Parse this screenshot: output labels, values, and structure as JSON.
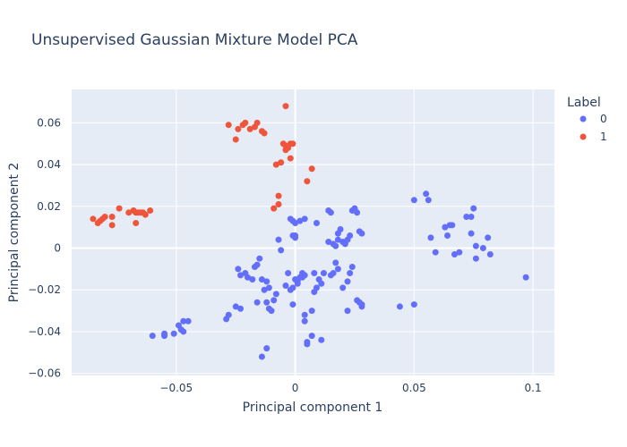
{
  "chart_data": {
    "type": "scatter",
    "title": "Unsupervised Gaussian Mixture Model PCA",
    "xlabel": "Principal component 1",
    "ylabel": "Principal component 2",
    "xlim": [
      -0.094,
      0.109
    ],
    "ylim": [
      -0.061,
      0.076
    ],
    "x_ticks": [
      {
        "value": -0.05,
        "label": "−0.05"
      },
      {
        "value": 0,
        "label": "0"
      },
      {
        "value": 0.05,
        "label": "0.05"
      },
      {
        "value": 0.1,
        "label": "0.1"
      }
    ],
    "y_ticks": [
      {
        "value": -0.06,
        "label": "−0.06"
      },
      {
        "value": -0.04,
        "label": "−0.04"
      },
      {
        "value": -0.02,
        "label": "−0.02"
      },
      {
        "value": 0,
        "label": "0"
      },
      {
        "value": 0.02,
        "label": "0.02"
      },
      {
        "value": 0.04,
        "label": "0.04"
      },
      {
        "value": 0.06,
        "label": "0.06"
      }
    ],
    "grid": true,
    "legend": {
      "title": "Label",
      "position": "right"
    },
    "series": [
      {
        "name": "0",
        "color": "#636efa",
        "points": [
          [
            -0.06,
            -0.042
          ],
          [
            -0.055,
            -0.042
          ],
          [
            -0.055,
            -0.041
          ],
          [
            -0.051,
            -0.041
          ],
          [
            -0.049,
            -0.037
          ],
          [
            -0.048,
            -0.039
          ],
          [
            -0.047,
            -0.04
          ],
          [
            -0.045,
            -0.035
          ],
          [
            -0.047,
            -0.035
          ],
          [
            -0.029,
            -0.034
          ],
          [
            -0.028,
            -0.032
          ],
          [
            -0.025,
            -0.028
          ],
          [
            -0.023,
            -0.029
          ],
          [
            -0.014,
            -0.052
          ],
          [
            -0.012,
            -0.048
          ],
          [
            -0.024,
            -0.01
          ],
          [
            -0.023,
            -0.013
          ],
          [
            -0.021,
            -0.012
          ],
          [
            -0.02,
            -0.014
          ],
          [
            -0.018,
            -0.015
          ],
          [
            -0.017,
            -0.009
          ],
          [
            -0.016,
            -0.008
          ],
          [
            -0.015,
            -0.005
          ],
          [
            -0.014,
            -0.015
          ],
          [
            -0.013,
            -0.02
          ],
          [
            -0.012,
            -0.016
          ],
          [
            -0.011,
            -0.019
          ],
          [
            -0.016,
            -0.026
          ],
          [
            -0.012,
            -0.026
          ],
          [
            -0.011,
            -0.029
          ],
          [
            -0.01,
            -0.03
          ],
          [
            -0.009,
            -0.025
          ],
          [
            -0.008,
            -0.022
          ],
          [
            -0.006,
            -0.001
          ],
          [
            -0.007,
            0.004
          ],
          [
            -0.004,
            -0.018
          ],
          [
            -0.003,
            -0.012
          ],
          [
            -0.002,
            -0.02
          ],
          [
            -0.001,
            -0.027
          ],
          [
            -0.001,
            -0.019
          ],
          [
            0.0,
            -0.015
          ],
          [
            0.001,
            -0.017
          ],
          [
            0.001,
            -0.016
          ],
          [
            0.002,
            -0.014
          ],
          [
            0.003,
            -0.014
          ],
          [
            0.003,
            -0.012
          ],
          [
            0.004,
            -0.013
          ],
          [
            0.004,
            -0.032
          ],
          [
            0.004,
            -0.035
          ],
          [
            0.005,
            -0.045
          ],
          [
            0.005,
            -0.046
          ],
          [
            0.007,
            -0.042
          ],
          [
            0.008,
            -0.021
          ],
          [
            0.008,
            -0.012
          ],
          [
            0.007,
            -0.03
          ],
          [
            0.011,
            -0.044
          ],
          [
            -0.002,
            0.014
          ],
          [
            -0.001,
            0.013
          ],
          [
            0.0,
            0.012
          ],
          [
            0.002,
            0.013
          ],
          [
            0.004,
            0.014
          ],
          [
            0.009,
            0.012
          ],
          [
            0.0,
            0.006
          ],
          [
            -0.001,
            0.006
          ],
          [
            0.0,
            0.005
          ],
          [
            0.014,
            0.018
          ],
          [
            0.015,
            0.017
          ],
          [
            0.014,
            0.003
          ],
          [
            0.016,
            0.002
          ],
          [
            0.017,
            0.001
          ],
          [
            0.018,
            0.004
          ],
          [
            0.018,
            0.007
          ],
          [
            0.019,
            0.009
          ],
          [
            0.02,
            0.003
          ],
          [
            0.021,
            0.002
          ],
          [
            0.022,
            0.004
          ],
          [
            0.023,
            0.006
          ],
          [
            0.024,
            0.018
          ],
          [
            0.025,
            0.019
          ],
          [
            0.026,
            0.017
          ],
          [
            0.027,
            0.008
          ],
          [
            0.028,
            0.007
          ],
          [
            0.024,
            -0.009
          ],
          [
            0.023,
            -0.012
          ],
          [
            0.022,
            -0.016
          ],
          [
            0.02,
            -0.019
          ],
          [
            0.018,
            -0.01
          ],
          [
            0.017,
            -0.007
          ],
          [
            0.016,
            -0.012
          ],
          [
            0.015,
            -0.013
          ],
          [
            0.012,
            -0.012
          ],
          [
            0.01,
            -0.015
          ],
          [
            0.011,
            -0.017
          ],
          [
            0.009,
            -0.019
          ],
          [
            0.026,
            -0.025
          ],
          [
            0.027,
            -0.026
          ],
          [
            0.028,
            -0.028
          ],
          [
            0.028,
            -0.027
          ],
          [
            0.022,
            -0.03
          ],
          [
            0.044,
            -0.028
          ],
          [
            0.05,
            -0.027
          ],
          [
            0.05,
            0.023
          ],
          [
            0.055,
            0.026
          ],
          [
            0.056,
            0.023
          ],
          [
            0.057,
            0.005
          ],
          [
            0.059,
            -0.002
          ],
          [
            0.063,
            0.01
          ],
          [
            0.064,
            0.006
          ],
          [
            0.065,
            0.011
          ],
          [
            0.066,
            0.011
          ],
          [
            0.067,
            -0.003
          ],
          [
            0.069,
            -0.002
          ],
          [
            0.072,
            0.015
          ],
          [
            0.074,
            0.015
          ],
          [
            0.075,
            0.019
          ],
          [
            0.074,
            0.007
          ],
          [
            0.076,
            -0.005
          ],
          [
            0.076,
            0.001
          ],
          [
            0.079,
            0.0
          ],
          [
            0.081,
            0.005
          ],
          [
            0.082,
            -0.003
          ],
          [
            0.097,
            -0.014
          ]
        ]
      },
      {
        "name": "1",
        "color": "#ef553b",
        "points": [
          [
            -0.085,
            0.014
          ],
          [
            -0.083,
            0.012
          ],
          [
            -0.082,
            0.013
          ],
          [
            -0.081,
            0.014
          ],
          [
            -0.08,
            0.015
          ],
          [
            -0.077,
            0.015
          ],
          [
            -0.077,
            0.011
          ],
          [
            -0.074,
            0.019
          ],
          [
            -0.07,
            0.017
          ],
          [
            -0.068,
            0.018
          ],
          [
            -0.067,
            0.017
          ],
          [
            -0.066,
            0.017
          ],
          [
            -0.065,
            0.017
          ],
          [
            -0.064,
            0.017
          ],
          [
            -0.063,
            0.016
          ],
          [
            -0.061,
            0.018
          ],
          [
            -0.067,
            0.012
          ],
          [
            -0.028,
            0.059
          ],
          [
            -0.024,
            0.057
          ],
          [
            -0.022,
            0.059
          ],
          [
            -0.021,
            0.06
          ],
          [
            -0.019,
            0.057
          ],
          [
            -0.017,
            0.058
          ],
          [
            -0.016,
            0.06
          ],
          [
            -0.014,
            0.056
          ],
          [
            -0.013,
            0.055
          ],
          [
            -0.025,
            0.052
          ],
          [
            -0.004,
            0.068
          ],
          [
            -0.005,
            0.05
          ],
          [
            -0.004,
            0.049
          ],
          [
            -0.003,
            0.048
          ],
          [
            -0.002,
            0.05
          ],
          [
            -0.001,
            0.05
          ],
          [
            -0.004,
            0.047
          ],
          [
            -0.008,
            0.04
          ],
          [
            -0.006,
            0.041
          ],
          [
            -0.002,
            0.043
          ],
          [
            0.007,
            0.038
          ],
          [
            0.005,
            0.032
          ],
          [
            -0.007,
            0.025
          ],
          [
            -0.007,
            0.021
          ],
          [
            -0.009,
            0.019
          ]
        ]
      }
    ]
  }
}
